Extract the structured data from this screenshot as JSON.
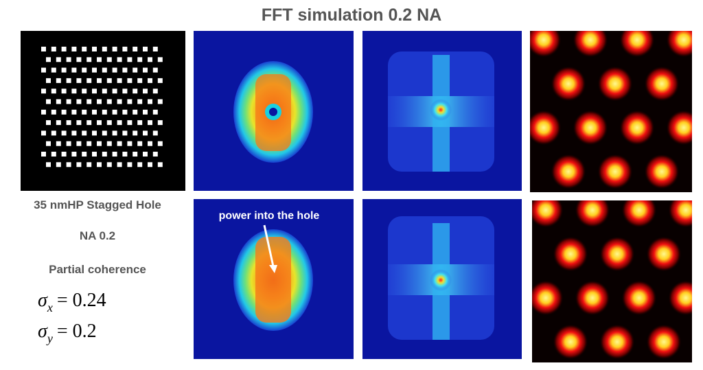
{
  "title": "FFT simulation  0.2 NA",
  "left_labels": {
    "pattern": "35 nmHP Stagged Hole",
    "na": "NA 0.2",
    "coherence": "Partial coherence"
  },
  "sigma_x": {
    "symbol": "σ",
    "sub": "x",
    "rhs": "= 0.24"
  },
  "sigma_y": {
    "symbol": "σ",
    "sub": "y",
    "rhs": "= 0.2"
  },
  "annotation": "power into the hole"
}
